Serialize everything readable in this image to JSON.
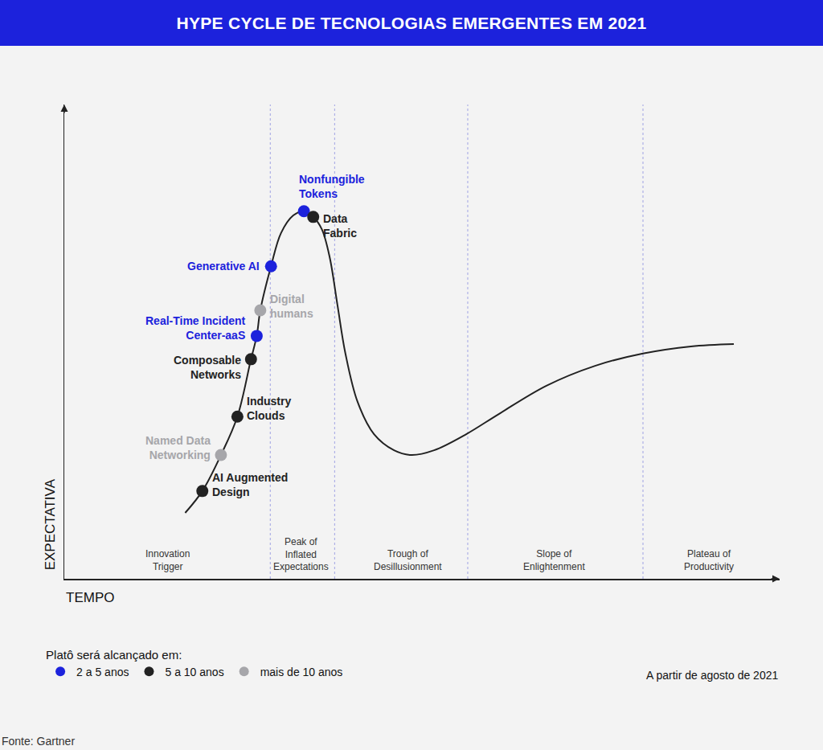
{
  "chart_data": {
    "type": "line",
    "title": "HYPE CYCLE DE TECNOLOGIAS EMERGENTES EM 2021",
    "x_label": "TEMPO",
    "y_label": "EXPECTATIVA",
    "xlim": [
      0,
      100
    ],
    "ylim": [
      0,
      100
    ],
    "xticks": [],
    "yticks": [],
    "tick_labels": false,
    "grid": false,
    "curve": {
      "color": "#222222",
      "x": [
        16.9,
        19.3,
        21.9,
        24.2,
        26.1,
        26.9,
        27.4,
        28.9,
        30.3,
        32.0,
        33.5,
        34.8,
        36.0,
        37.1,
        38.2,
        39.3,
        41.0,
        43.3,
        46.1,
        48.5,
        51.7,
        56.2,
        60.7,
        67.4,
        74.2,
        80.9,
        87.6,
        93.6
      ],
      "y": [
        13.9,
        18.5,
        26.1,
        34.2,
        46.3,
        51.2,
        56.6,
        65.9,
        72.9,
        76.6,
        77.5,
        76.3,
        73.7,
        67.8,
        57.6,
        47.5,
        37.3,
        30.5,
        27.1,
        26.1,
        27.1,
        30.5,
        34.7,
        40.7,
        44.9,
        47.5,
        49.0,
        49.5
      ]
    },
    "phases": {
      "labels": [
        [
          "Innovation",
          "Trigger"
        ],
        [
          "Peak of",
          "Inflated",
          "Expectations"
        ],
        [
          "Trough of",
          "Desillusionment"
        ],
        [
          "Slope of",
          "Enlightenment"
        ],
        [
          "Plateau of",
          "Productivity"
        ]
      ],
      "x": [
        14.4,
        33.1,
        48.0,
        68.5,
        90.1
      ],
      "boundaries": [
        28.8,
        37.8,
        56.4,
        80.9
      ]
    },
    "legend_title": "Platô será alcançado em:",
    "series": [
      {
        "name": "2 a 5 anos",
        "color": "#1c22dc",
        "points": [
          {
            "label": [
              "Nonfungible",
              "Tokens"
            ],
            "x": 33.5,
            "y": 77.5
          },
          {
            "label": [
              "Generative AI"
            ],
            "x": 28.9,
            "y": 65.9
          },
          {
            "label": [
              "Real-Time Incident",
              "Center-aaS"
            ],
            "x": 26.9,
            "y": 51.2
          }
        ]
      },
      {
        "name": "5 a 10 anos",
        "color": "#222222",
        "points": [
          {
            "label": [
              "Data",
              "Fabric"
            ],
            "x": 34.8,
            "y": 76.3
          },
          {
            "label": [
              "Composable",
              "Networks"
            ],
            "x": 26.1,
            "y": 46.3
          },
          {
            "label": [
              "Industry",
              "Clouds"
            ],
            "x": 24.2,
            "y": 34.2
          },
          {
            "label": [
              "AI Augmented",
              "Design"
            ],
            "x": 19.3,
            "y": 18.5
          }
        ]
      },
      {
        "name": "mais de 10 anos",
        "color": "#a6a6aa",
        "points": [
          {
            "label": [
              "Digital",
              "humans"
            ],
            "x": 27.4,
            "y": 56.6
          },
          {
            "label": [
              "Named Data",
              "Networking"
            ],
            "x": 21.9,
            "y": 26.1
          }
        ]
      }
    ],
    "note": "A partir de agosto de 2021",
    "source": "Fonte: Gartner"
  }
}
